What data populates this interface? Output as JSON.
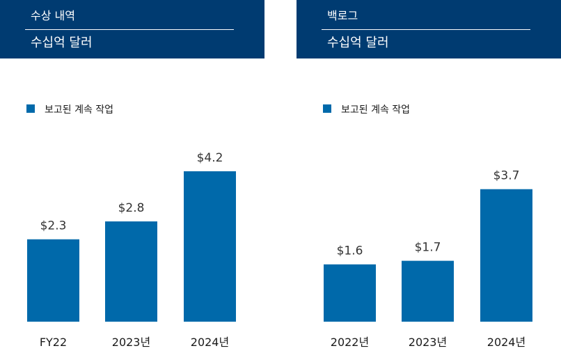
{
  "colors": {
    "header_bg": "#003b71",
    "bar": "#0069aa",
    "text": "#1a1a1a"
  },
  "chart_data": [
    {
      "type": "bar",
      "title": "수상 내역",
      "subtitle": "수십억 달러",
      "legend": "보고된 계속 작업",
      "categories": [
        "FY22",
        "2023년",
        "2024년"
      ],
      "values": [
        2.3,
        2.8,
        4.2
      ],
      "value_labels": [
        "$2.3",
        "$2.8",
        "$4.2"
      ],
      "ylim": [
        0,
        4.2
      ]
    },
    {
      "type": "bar",
      "title": "백로그",
      "subtitle": "수십억 달러",
      "legend": "보고된 계속 작업",
      "categories": [
        "2022년",
        "2023년",
        "2024년"
      ],
      "values": [
        1.6,
        1.7,
        3.7
      ],
      "value_labels": [
        "$1.6",
        "$1.7",
        "$3.7"
      ],
      "ylim": [
        0,
        4.2
      ]
    }
  ]
}
